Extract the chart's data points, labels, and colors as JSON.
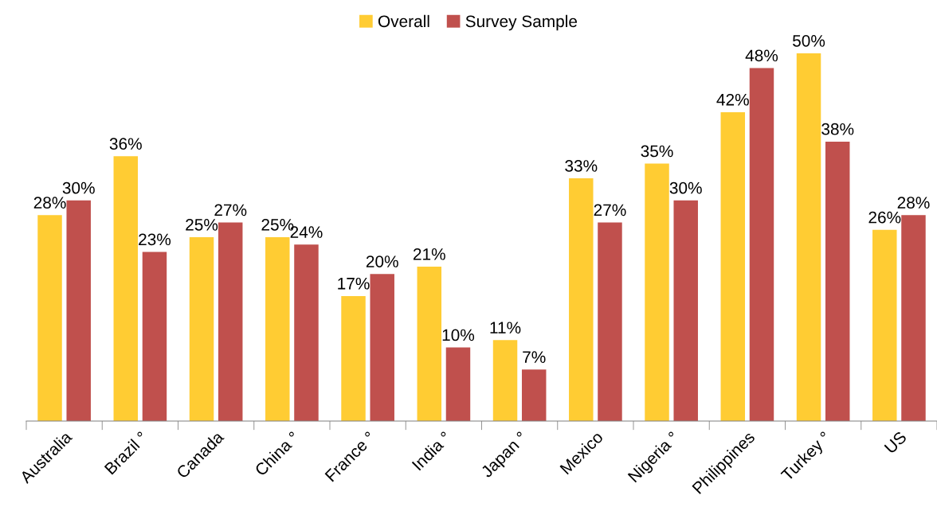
{
  "chart_data": {
    "type": "bar",
    "categories": [
      "Australia",
      "Brazil °",
      "Canada",
      "China °",
      "France °",
      "India °",
      "Japan °",
      "Mexico",
      "Nigeria °",
      "Philippines",
      "Turkey °",
      "US"
    ],
    "series": [
      {
        "name": "Overall",
        "color": "#ffcc33",
        "values": [
          28,
          36,
          25,
          25,
          17,
          21,
          11,
          33,
          35,
          42,
          50,
          26
        ],
        "value_labels": [
          "28%",
          "36%",
          "25%",
          "25%",
          "17%",
          "21%",
          "11%",
          "33%",
          "35%",
          "42%",
          "50%",
          "26%"
        ]
      },
      {
        "name": "Survey Sample",
        "color": "#c0504d",
        "values": [
          30,
          23,
          27,
          24,
          20,
          10,
          7,
          27,
          30,
          48,
          38,
          28
        ],
        "value_labels": [
          "30%",
          "23%",
          "27%",
          "24%",
          "20%",
          "10%",
          "7%",
          "27%",
          "30%",
          "48%",
          "38%",
          "28%"
        ]
      }
    ],
    "tick_labels": "x",
    "grid": false,
    "legend": "top"
  }
}
